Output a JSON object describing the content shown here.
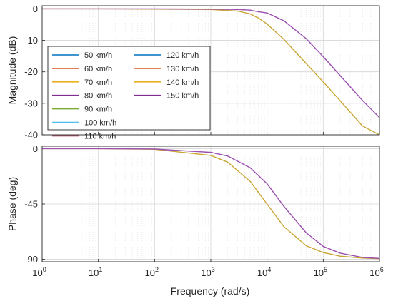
{
  "chart_data": {
    "type": "line",
    "xscale": "log",
    "xlabel": "Frequency  (rad/s)",
    "xlim": [
      1,
      1000000
    ],
    "x_ticks": [
      {
        "base": "10",
        "exp": "0"
      },
      {
        "base": "10",
        "exp": "1"
      },
      {
        "base": "10",
        "exp": "2"
      },
      {
        "base": "10",
        "exp": "3"
      },
      {
        "base": "10",
        "exp": "4"
      },
      {
        "base": "10",
        "exp": "5"
      },
      {
        "base": "10",
        "exp": "6"
      }
    ],
    "grid": true,
    "legend_position": "left",
    "colors": {
      "group_a": "#c8a531",
      "group_b": "#9b4fb0"
    },
    "legend": [
      {
        "label": "50 km/h",
        "color": "#0072bd"
      },
      {
        "label": "60 km/h",
        "color": "#d95319"
      },
      {
        "label": "70 km/h",
        "color": "#edb120"
      },
      {
        "label": "80 km/h",
        "color": "#7e2f8e"
      },
      {
        "label": "90 km/h",
        "color": "#77ac30"
      },
      {
        "label": "100 km/h",
        "color": "#4dbeee"
      },
      {
        "label": "110 km/h",
        "color": "#a2142f"
      },
      {
        "label": "120 km/h",
        "color": "#0072bd"
      },
      {
        "label": "130 km/h",
        "color": "#d95319"
      },
      {
        "label": "140 km/h",
        "color": "#edb120"
      },
      {
        "label": "150 km/h",
        "color": "#7e2f8e"
      }
    ],
    "panels": [
      {
        "name": "magnitude",
        "ylabel": "Magnitude (dB)",
        "ylim": [
          -40,
          1
        ],
        "y_ticks": [
          "0",
          "-10",
          "-20",
          "-30",
          "-40"
        ],
        "x": [
          1,
          10,
          100,
          1000,
          3000,
          5000,
          7000,
          10000,
          20000,
          50000,
          100000,
          200000,
          500000,
          1000000
        ],
        "series": [
          {
            "group": "group_a",
            "values": [
              0,
              0,
              -0.1,
              -0.2,
              -0.7,
              -1.6,
              -2.9,
              -4.8,
              -9.7,
              -17.4,
              -23.2,
              -29.2,
              -37.2,
              -40
            ]
          },
          {
            "group": "group_b",
            "values": [
              0,
              0,
              0,
              -0.1,
              -0.2,
              -0.4,
              -0.9,
              -1.3,
              -3.8,
              -9.5,
              -15.2,
              -21.2,
              -29.1,
              -34.5
            ]
          }
        ]
      },
      {
        "name": "phase",
        "ylabel": "Phase (deg)",
        "ylim": [
          -92,
          2
        ],
        "y_ticks": [
          "0",
          "-45",
          "-90"
        ],
        "x": [
          1,
          10,
          100,
          1000,
          2000,
          5000,
          10000,
          20000,
          50000,
          100000,
          200000,
          500000,
          1000000
        ],
        "series": [
          {
            "group": "group_a",
            "values": [
              0,
              0,
              -0.5,
              -5.5,
              -11,
              -26.5,
              -45,
              -63.5,
              -79,
              -84.5,
              -87.5,
              -89,
              -89.5
            ]
          },
          {
            "group": "group_b",
            "values": [
              0,
              0,
              -0.3,
              -3,
              -6,
              -15.5,
              -28.5,
              -47,
              -68.5,
              -79.5,
              -85,
              -88.5,
              -89.3
            ]
          }
        ]
      }
    ]
  }
}
